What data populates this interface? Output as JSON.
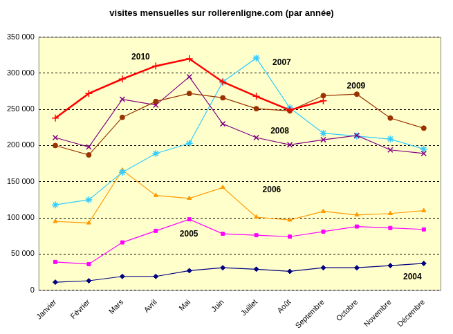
{
  "chart_data": {
    "type": "line",
    "title": "visites mensuelles sur rollerenligne.com (par année)",
    "categories": [
      "Janvier",
      "Février",
      "Mars",
      "Avril",
      "Mai",
      "Juin",
      "Juillet",
      "Août",
      "Septembre",
      "Octobre",
      "Novembre",
      "Décembre"
    ],
    "series": [
      {
        "name": "2010",
        "color": "#ff0000",
        "marker": "plus",
        "values": [
          238000,
          272000,
          292000,
          310000,
          320000,
          288000,
          268000,
          249000,
          262000,
          null,
          null,
          null
        ]
      },
      {
        "name": "2009",
        "color": "#993300",
        "marker": "circle",
        "values": [
          200000,
          187000,
          239000,
          261000,
          272000,
          266000,
          251000,
          248000,
          269000,
          271000,
          238000,
          224000
        ]
      },
      {
        "name": "2008",
        "color": "#800080",
        "marker": "x",
        "values": [
          211000,
          198000,
          264000,
          256000,
          295000,
          230000,
          211000,
          201000,
          208000,
          214000,
          194000,
          189000
        ]
      },
      {
        "name": "2007",
        "color": "#33ccff",
        "marker": "star",
        "values": [
          118000,
          125000,
          163000,
          189000,
          203000,
          288000,
          321000,
          252000,
          217000,
          213000,
          209000,
          195000
        ]
      },
      {
        "name": "2006",
        "color": "#ff9900",
        "marker": "triangle",
        "values": [
          95000,
          93000,
          166000,
          131000,
          127000,
          142000,
          101000,
          97000,
          109000,
          104000,
          106000,
          110000
        ]
      },
      {
        "name": "2005",
        "color": "#ff00ff",
        "marker": "square",
        "values": [
          39000,
          36000,
          66000,
          82000,
          98000,
          78000,
          76000,
          74000,
          81000,
          88000,
          86000,
          84000
        ]
      },
      {
        "name": "2004",
        "color": "#000080",
        "marker": "diamond",
        "values": [
          11000,
          13000,
          19000,
          19000,
          27000,
          31000,
          29000,
          26000,
          31000,
          31000,
          34000,
          37000
        ]
      }
    ],
    "ylim": [
      0,
      350000
    ],
    "yticks": [
      0,
      {
        "value": 50000,
        "label": "50 000"
      },
      {
        "value": 100000,
        "label": "100 000"
      },
      {
        "value": 150000,
        "label": "150 000"
      },
      {
        "value": 200000,
        "label": "200 000"
      },
      {
        "value": 250000,
        "label": "250 000"
      },
      {
        "value": 300000,
        "label": "300 000"
      },
      {
        "value": 350000,
        "label": "350 000"
      }
    ],
    "grid": true
  }
}
